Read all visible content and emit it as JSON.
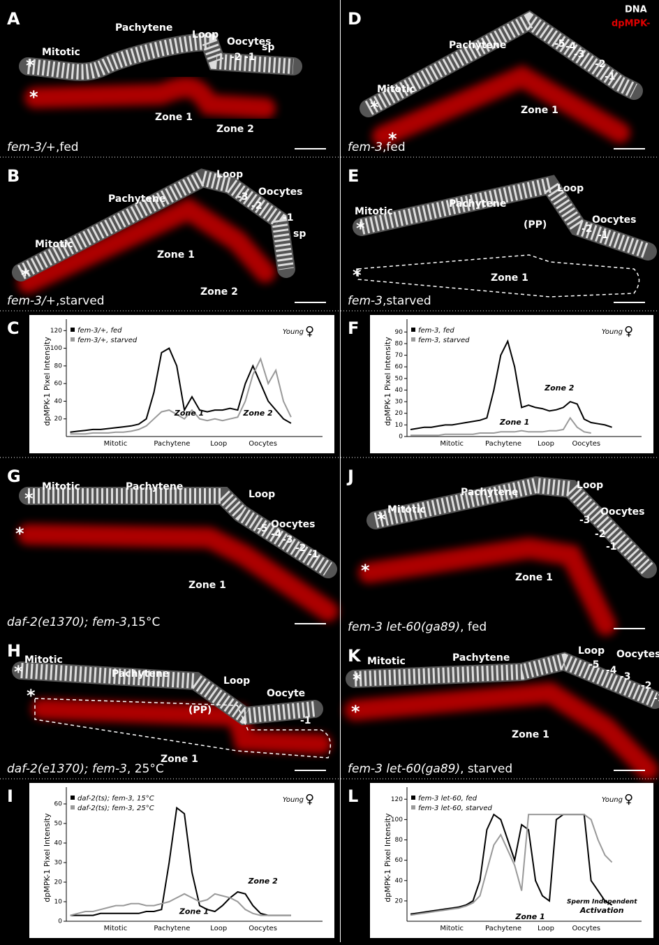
{
  "images": [
    {
      "letter": "A",
      "labels": [
        "Mitotic",
        "Pachytene",
        "Loop",
        "Oocytes",
        "-2",
        "-1",
        "sp",
        "Zone 1",
        "Zone 2",
        "*",
        "*"
      ],
      "caption_italic": "fem-3/+",
      "caption_rest": ",fed"
    },
    {
      "letter": "D",
      "labels": [
        "DNA",
        "dpMPK-",
        "Mitotic",
        "Pachytene",
        "-5",
        "-4",
        "-3",
        "-2",
        "-1",
        "Zone 1",
        "*",
        "*"
      ],
      "caption_italic": "fem-3",
      "caption_rest": ",fed"
    },
    {
      "letter": "B",
      "labels": [
        "Pachytene",
        "Mitotic",
        "Loop",
        "Oocytes",
        "-3",
        "-2",
        "-1",
        "sp",
        "Zone 1",
        "Zone 2",
        "*"
      ],
      "caption_italic": "fem-3/+",
      "caption_rest": ",starved"
    },
    {
      "letter": "E",
      "labels": [
        "Mitotic",
        "Pachytene",
        "Loop",
        "Oocytes",
        "(PP)",
        "-2",
        "-1",
        "Zone 1",
        "*",
        "*"
      ],
      "caption_italic": "fem-3",
      "caption_rest": ",starved"
    },
    {
      "letter": "G",
      "labels": [
        "Mitotic",
        "Pachytene",
        "Loop",
        "Oocytes",
        "-5",
        "-4",
        "-3",
        "-2",
        "-1",
        "Zone 1",
        "*",
        "*"
      ],
      "caption_italic": "daf-2(e1370); fem-3",
      "caption_rest": ",15°C"
    },
    {
      "letter": "J",
      "labels": [
        "Mitotic",
        "Pachytene",
        "Loop",
        "Oocytes",
        "-3",
        "-2",
        "-1",
        "Zone 1",
        "*",
        "*"
      ],
      "caption_italic": "fem-3 let-60(ga89)",
      "caption_rest": ", fed"
    },
    {
      "letter": "H",
      "labels": [
        "Mitotic",
        "Pachytene",
        "Loop",
        "Oocyte",
        "(PP)",
        "-1",
        "Zone 1",
        "*",
        "*"
      ],
      "caption_italic": "daf-2(e1370); fem-3",
      "caption_rest": ", 25°C"
    },
    {
      "letter": "K",
      "labels": [
        "Mitotic",
        "Pachytene",
        "Loop",
        "Oocytes",
        "-5",
        "-4",
        "-3",
        "-2",
        "-1",
        "Zone 1",
        "*",
        "*"
      ],
      "caption_italic": "fem-3 let-60(ga89)",
      "caption_rest": ", starved"
    }
  ],
  "chart_data": [
    {
      "type": "line",
      "letter": "C",
      "y_label": "dpMPK-1 Pixel Intensity",
      "ylim": [
        0,
        125
      ],
      "yticks": [
        20,
        40,
        60,
        80,
        100,
        120
      ],
      "regions": [
        "Mitotic",
        "Pachytene",
        "Loop",
        "Oocytes"
      ],
      "annotations": [
        "Zone 1",
        "Zone 2"
      ],
      "sex_label": "Young",
      "sex_symbol": "♀",
      "series": [
        {
          "name": "fem-3/+, fed",
          "color": "#000000",
          "values": [
            5,
            6,
            7,
            8,
            8,
            9,
            10,
            11,
            12,
            14,
            20,
            50,
            95,
            100,
            80,
            30,
            45,
            30,
            28,
            30,
            30,
            32,
            30,
            60,
            80,
            60,
            40,
            30,
            20,
            15
          ]
        },
        {
          "name": "fem-3/+, starved",
          "color": "#999999",
          "values": [
            3,
            3,
            3,
            4,
            4,
            4,
            5,
            5,
            6,
            8,
            12,
            20,
            28,
            30,
            25,
            20,
            30,
            20,
            18,
            20,
            18,
            20,
            22,
            40,
            70,
            88,
            60,
            75,
            40,
            22
          ]
        }
      ]
    },
    {
      "type": "line",
      "letter": "F",
      "y_label": "dpMPK-1 Pixel Intensity",
      "ylim": [
        0,
        95
      ],
      "yticks": [
        0,
        10,
        20,
        30,
        40,
        50,
        60,
        70,
        80,
        90
      ],
      "regions": [
        "Mitotic",
        "Pachytene",
        "Loop",
        "Oocytes"
      ],
      "annotations": [
        "Zone 2",
        "Zone 1"
      ],
      "sex_label": "Young",
      "sex_symbol": "♀",
      "series": [
        {
          "name": "fem-3, fed",
          "color": "#000000",
          "values": [
            6,
            7,
            8,
            8,
            9,
            10,
            10,
            11,
            12,
            13,
            14,
            16,
            40,
            70,
            82,
            60,
            25,
            27,
            25,
            24,
            22,
            23,
            25,
            30,
            28,
            15,
            12,
            11,
            10,
            8
          ]
        },
        {
          "name": "fem-3, starved",
          "color": "#999999",
          "values": [
            1,
            1,
            1,
            1,
            1,
            2,
            2,
            2,
            2,
            2,
            3,
            3,
            3,
            4,
            4,
            4,
            5,
            4,
            4,
            4,
            5,
            5,
            6,
            16,
            8,
            4,
            3,
            null,
            null,
            null
          ]
        }
      ]
    },
    {
      "type": "line",
      "letter": "I",
      "y_label": "dpMPK-1 Pixel Intensity",
      "ylim": [
        0,
        65
      ],
      "yticks": [
        0,
        10,
        20,
        30,
        40,
        50,
        60
      ],
      "regions": [
        "Mitotic",
        "Pachytene",
        "Loop",
        "Oocytes"
      ],
      "annotations": [
        "Zone 1",
        "Zone 2"
      ],
      "sex_label": "Young",
      "sex_symbol": "♀",
      "series": [
        {
          "name": "daf-2(ts); fem-3, 15°C",
          "color": "#000000",
          "values": [
            3,
            3,
            3,
            3,
            4,
            4,
            4,
            4,
            4,
            4,
            5,
            5,
            6,
            30,
            58,
            55,
            25,
            8,
            6,
            5,
            8,
            12,
            15,
            14,
            8,
            4,
            3,
            3,
            3,
            3
          ]
        },
        {
          "name": "daf-2(ts); fem-3, 25°C",
          "color": "#999999",
          "values": [
            3,
            4,
            5,
            5,
            6,
            7,
            8,
            8,
            9,
            9,
            8,
            8,
            9,
            10,
            12,
            14,
            12,
            10,
            11,
            14,
            13,
            12,
            10,
            6,
            4,
            3,
            3,
            3,
            3,
            3
          ]
        }
      ]
    },
    {
      "type": "line",
      "letter": "L",
      "y_label": "dpMPK-1 Pixel Intensity",
      "ylim": [
        0,
        125
      ],
      "yticks": [
        20,
        40,
        60,
        80,
        100,
        120
      ],
      "regions": [
        "Mitotic",
        "Pachytene",
        "Loop",
        "Oocytes"
      ],
      "annotations": [
        "Zone 1",
        "Sperm Independent",
        "Activation"
      ],
      "sex_label": "Young",
      "sex_symbol": "♀",
      "series": [
        {
          "name": "fem-3 let-60, fed",
          "color": "#000000",
          "values": [
            7,
            8,
            9,
            10,
            11,
            12,
            13,
            14,
            16,
            20,
            40,
            90,
            105,
            100,
            80,
            60,
            95,
            90,
            40,
            25,
            20,
            100,
            105,
            105,
            105,
            105,
            40,
            30,
            20,
            16
          ]
        },
        {
          "name": "fem-3 let-60, starved",
          "color": "#999999",
          "values": [
            6,
            7,
            8,
            9,
            10,
            11,
            12,
            13,
            15,
            18,
            25,
            50,
            75,
            85,
            70,
            55,
            30,
            105,
            105,
            105,
            105,
            105,
            105,
            105,
            105,
            105,
            100,
            80,
            65,
            58
          ]
        }
      ]
    }
  ]
}
